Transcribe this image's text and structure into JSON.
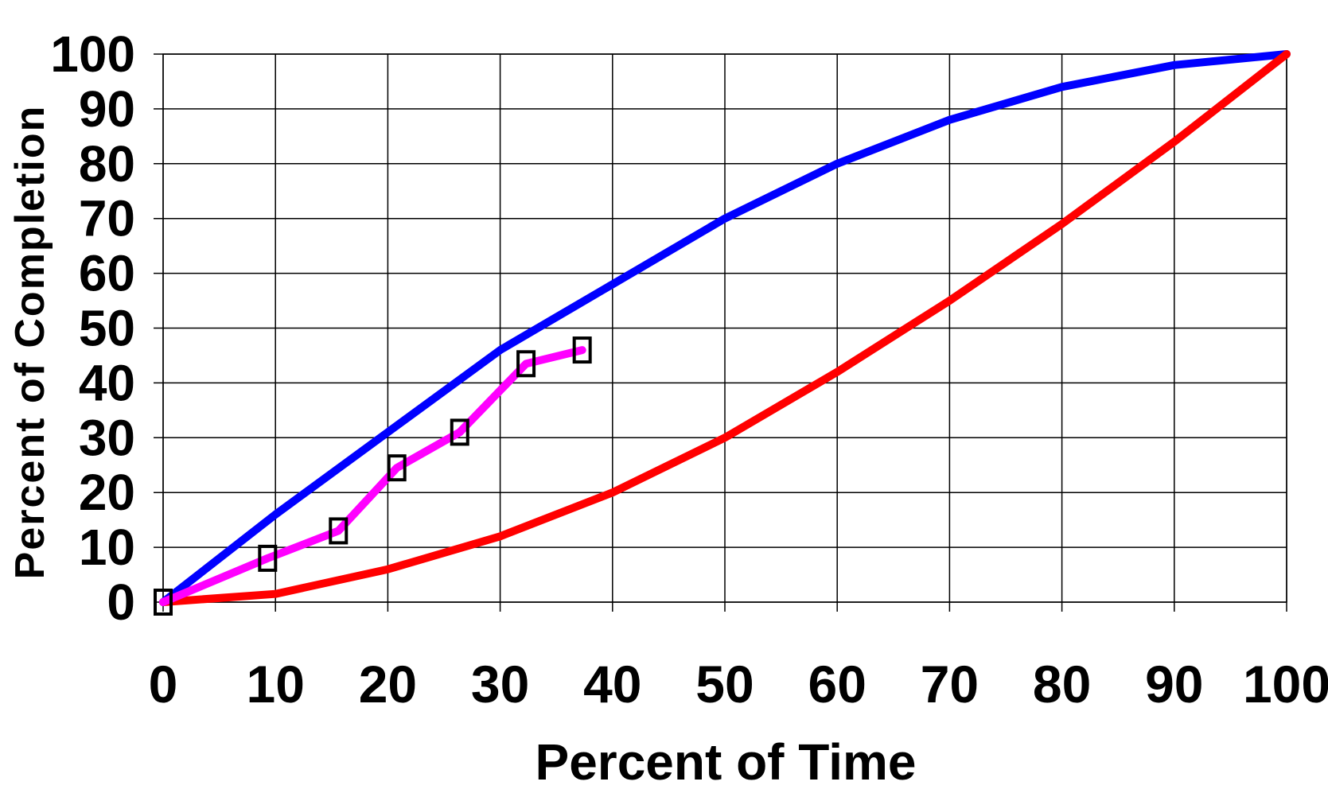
{
  "chart_data": {
    "type": "line",
    "title": "",
    "xlabel": "Percent of Time",
    "ylabel": "Percent of Completion",
    "xlim": [
      0,
      100
    ],
    "ylim": [
      0,
      100
    ],
    "x_ticks": [
      "0",
      "10",
      "20",
      "30",
      "40",
      "50",
      "60",
      "70",
      "80",
      "90",
      "100"
    ],
    "y_ticks": [
      "0",
      "10",
      "20",
      "30",
      "40",
      "50",
      "60",
      "70",
      "80",
      "90",
      "100"
    ],
    "grid": true,
    "legend": "none",
    "series": [
      {
        "color": "#0000ff",
        "marker": "none",
        "x": [
          0,
          10,
          20,
          30,
          40,
          50,
          60,
          70,
          80,
          90,
          100
        ],
        "y": [
          0,
          16,
          31,
          46,
          58,
          70,
          80,
          88,
          94,
          98,
          100
        ]
      },
      {
        "color": "#ff0000",
        "marker": "none",
        "x": [
          0,
          10,
          20,
          30,
          40,
          50,
          60,
          70,
          80,
          90,
          100
        ],
        "y": [
          0,
          1.5,
          6,
          12,
          20,
          30,
          42,
          55,
          69,
          84,
          100
        ]
      },
      {
        "color": "#ff00ff",
        "marker": "square",
        "x": [
          0,
          9.3,
          15.6,
          20.8,
          26.4,
          32.3,
          37.3
        ],
        "y": [
          0,
          8,
          13,
          24.5,
          31,
          43.5,
          46
        ]
      }
    ]
  }
}
